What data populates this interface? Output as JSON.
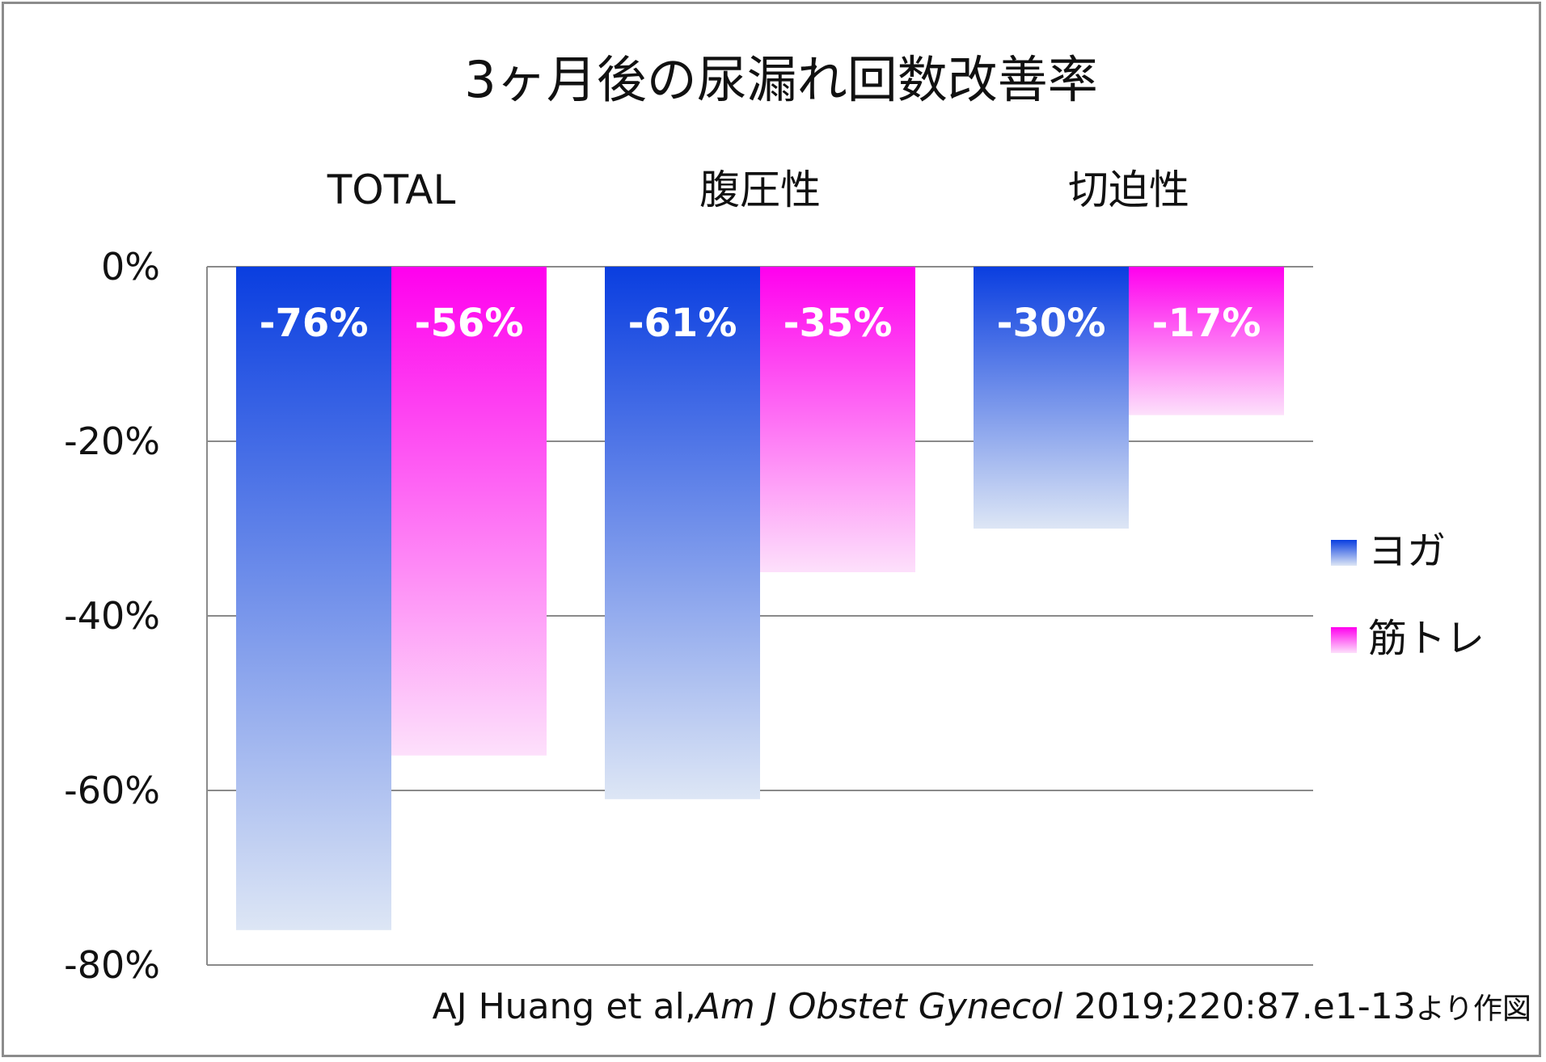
{
  "chart_data": {
    "type": "bar",
    "title": "3ヶ月後の尿漏れ回数改善率",
    "categories": [
      "TOTAL",
      "腹圧性",
      "切迫性"
    ],
    "series": [
      {
        "name": "ヨガ",
        "values": [
          -76,
          -61,
          -30
        ],
        "labels": [
          "-76%",
          "-61%",
          "-30%"
        ],
        "color_top": "#0a3ee0",
        "color_bottom": "#dde6f5"
      },
      {
        "name": "筋トレ",
        "values": [
          -56,
          -35,
          -17
        ],
        "labels": [
          "-56%",
          "-35%",
          "-17%"
        ],
        "color_top": "#ff00ee",
        "color_bottom": "#fde0fb"
      }
    ],
    "ylim": [
      -80,
      0
    ],
    "yticks": [
      0,
      -20,
      -40,
      -60,
      -80
    ],
    "ytick_labels": [
      "0%",
      "-20%",
      "-40%",
      "-60%",
      "-80%"
    ],
    "grid": true,
    "legend_position": "right",
    "xlabel": "",
    "ylabel": ""
  },
  "source": {
    "authors": "AJ Huang et al,",
    "journal": "Am J Obstet Gynecol",
    "citation": " 2019;220:87.e1-13",
    "suffix": "より作図"
  }
}
